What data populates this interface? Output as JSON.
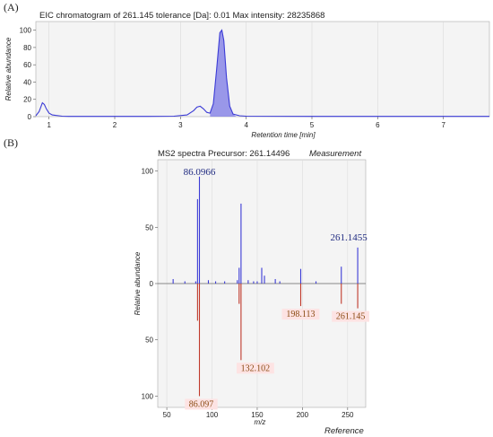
{
  "panel_a": {
    "letter": "(A)",
    "title": "EIC chromatogram of 261.145 tolerance [Da]: 0.01  Max intensity: 28235868"
  },
  "panel_b": {
    "letter": "(B)",
    "title": "MS2 spectra Precursor: 261.14496",
    "title_right": "Measurement"
  },
  "colors": {
    "measurement": "#3b3bd6",
    "reference": "#c0392b",
    "plot_bg": "#f4f4f4",
    "axis": "#555555"
  },
  "chart_data": [
    {
      "type": "line",
      "title": "EIC chromatogram of 261.145 tolerance [Da]: 0.01  Max intensity: 28235868",
      "xlabel": "Retention time [min]",
      "ylabel": "Relative abundance",
      "xlim": [
        0.8,
        7.7
      ],
      "ylim": [
        0,
        110
      ],
      "x_ticks": [
        1,
        2,
        3,
        4,
        5,
        6,
        7
      ],
      "y_ticks": [
        0,
        20,
        40,
        60,
        80,
        100
      ],
      "grid": "vertical",
      "series": [
        {
          "x": [
            0.8,
            0.85,
            0.9,
            0.93,
            0.96,
            1.0,
            1.05,
            1.1,
            1.15,
            1.2,
            1.3,
            1.5,
            2.0,
            2.5,
            2.9,
            3.1,
            3.2,
            3.25,
            3.3,
            3.35,
            3.4,
            3.45,
            3.5,
            3.55,
            3.6,
            3.63,
            3.66,
            3.7,
            3.75,
            3.8,
            3.9,
            4.0,
            5.0,
            6.0,
            7.0,
            7.7
          ],
          "y": [
            1,
            6,
            16,
            14,
            9,
            4,
            2,
            1.5,
            1,
            0.5,
            0.3,
            0.3,
            0.3,
            0.3,
            0.5,
            2,
            7,
            11,
            12,
            9,
            5,
            4,
            15,
            55,
            97,
            100,
            88,
            45,
            12,
            3,
            1,
            0.5,
            0.3,
            0.3,
            0.3,
            0.3
          ]
        }
      ]
    },
    {
      "type": "bar",
      "title": "MS2 spectra Precursor: 261.14496",
      "xlabel": "m/z",
      "ylabel": "Relative abundance",
      "xlim": [
        40,
        270
      ],
      "ylim": [
        -110,
        110
      ],
      "x_ticks": [
        50,
        100,
        150,
        200,
        250
      ],
      "y_ticks_top": [
        0,
        50,
        100
      ],
      "y_ticks_bottom": [
        50,
        100
      ],
      "legend": [
        "Measurement",
        "Reference"
      ],
      "series": [
        {
          "name": "Measurement",
          "x": [
            57,
            70,
            82,
            84,
            86.0966,
            96,
            104,
            114,
            128,
            130,
            132.102,
            140,
            146,
            150,
            155,
            158,
            170,
            175,
            198.113,
            215,
            243,
            261.1455
          ],
          "values": [
            4,
            2,
            2,
            75,
            95,
            3,
            2,
            2,
            3,
            14,
            71,
            3,
            2,
            2,
            14,
            7,
            4,
            2,
            13,
            2,
            15,
            32
          ],
          "labels": [
            {
              "x": 86.0966,
              "text": "86.0966"
            },
            {
              "x": 261.1455,
              "text": "261.1455"
            }
          ]
        },
        {
          "name": "Reference",
          "x": [
            84,
            86.097,
            130,
            132.102,
            198.113,
            243,
            261.145
          ],
          "values": [
            -33,
            -100,
            -18,
            -68,
            -20,
            -18,
            -22
          ],
          "labels": [
            {
              "x": 86.097,
              "text": "86.097"
            },
            {
              "x": 132.102,
              "text": "132.102"
            },
            {
              "x": 198.113,
              "text": "198.113"
            },
            {
              "x": 261.145,
              "text": "261.145"
            }
          ]
        }
      ]
    }
  ]
}
